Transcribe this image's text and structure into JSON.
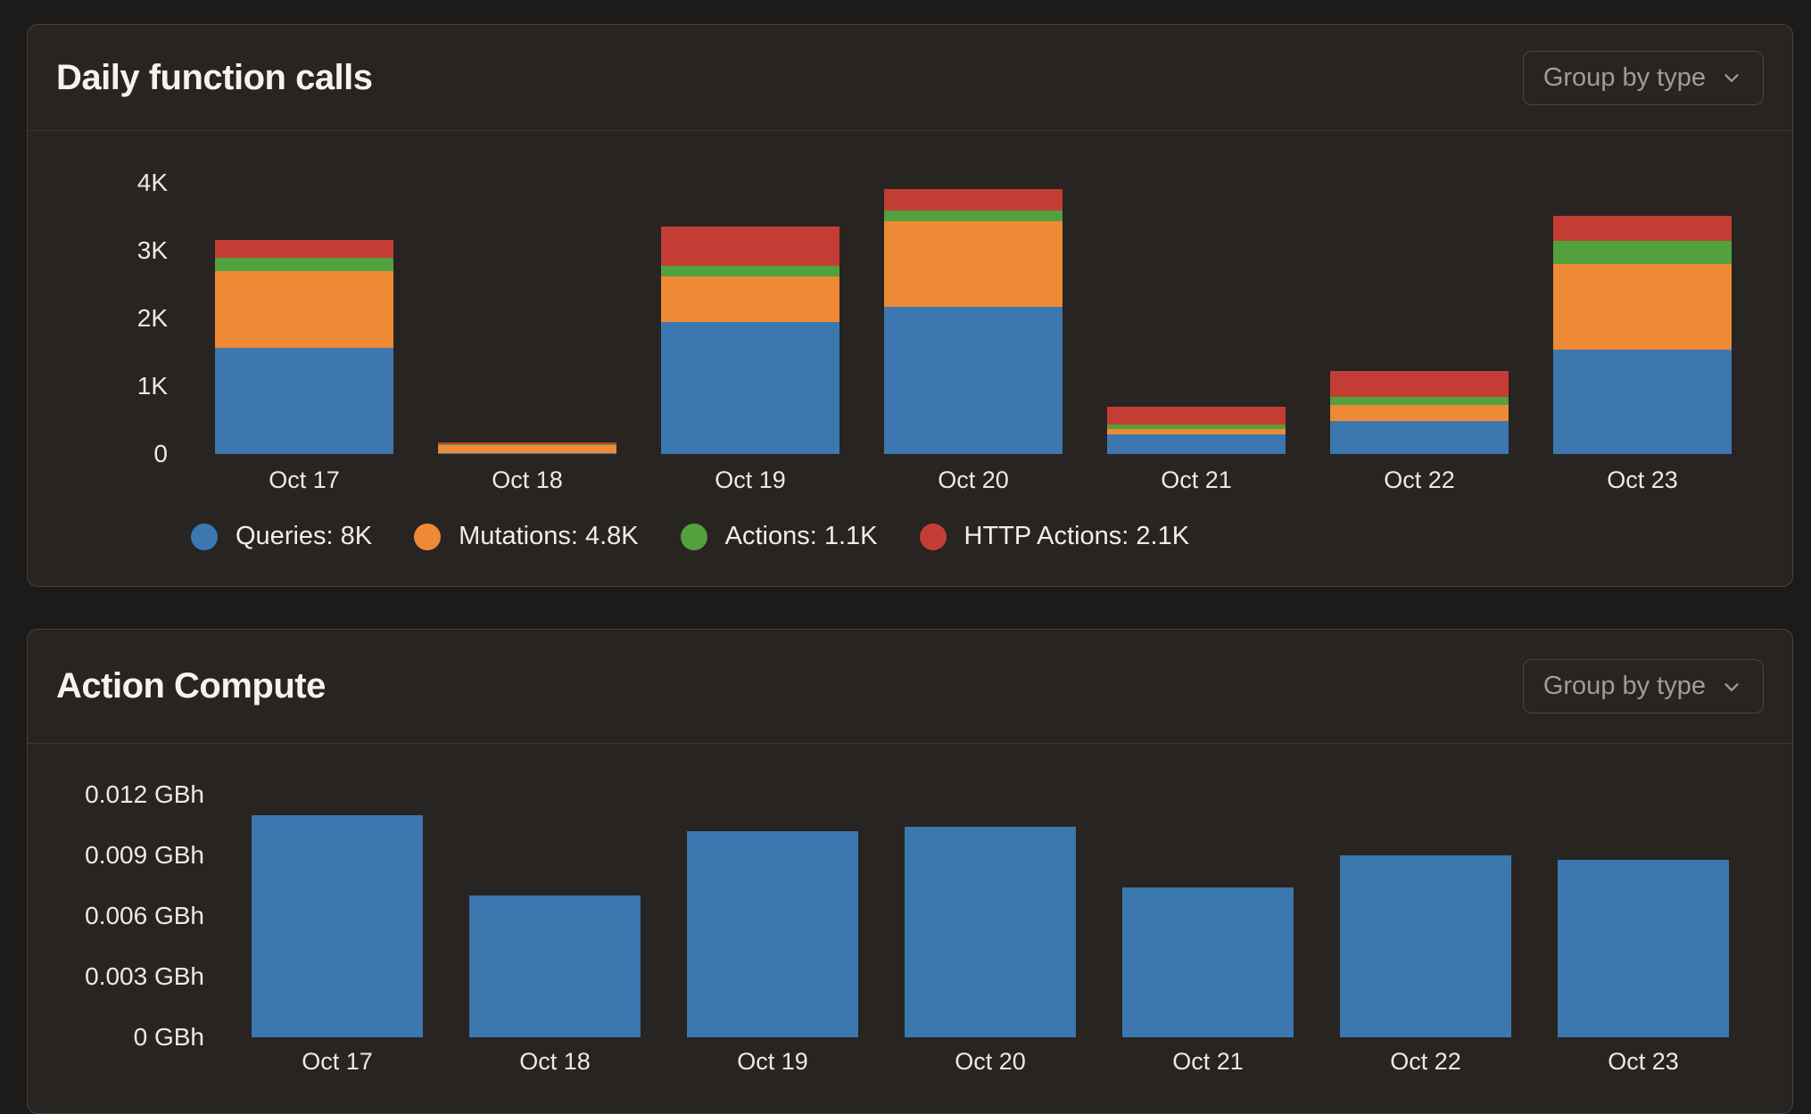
{
  "cards": [
    {
      "title": "Daily function calls",
      "group_button": {
        "label": "Group by type",
        "icon": "chevron-down-icon"
      }
    },
    {
      "title": "Action Compute",
      "group_button": {
        "label": "Group by type",
        "icon": "chevron-down-icon"
      }
    }
  ],
  "colors": {
    "queries_blue": "#3d77b0",
    "mutations_orange": "#ee8a35",
    "actions_green": "#52a03e",
    "http_actions_red": "#c43d35",
    "card_background": "#272421",
    "page_background": "#1d1b19",
    "card_border": "#45423e",
    "title_text": "#f4f3f1",
    "muted_text": "#a09d98",
    "axis_text": "#eceae7"
  },
  "chart_data": [
    {
      "type": "bar",
      "stacked": true,
      "title": "Daily function calls",
      "categories": [
        "Oct 17",
        "Oct 18",
        "Oct 19",
        "Oct 20",
        "Oct 21",
        "Oct 22",
        "Oct 23"
      ],
      "series": [
        {
          "name": "Queries",
          "legend_label": "Queries: 8K",
          "color": "#3d77b0",
          "values": [
            1570,
            15,
            1950,
            2170,
            285,
            490,
            1540
          ]
        },
        {
          "name": "Mutations",
          "legend_label": "Mutations: 4.8K",
          "color": "#ee8a35",
          "values": [
            1130,
            120,
            670,
            1270,
            90,
            230,
            1260
          ]
        },
        {
          "name": "Actions",
          "legend_label": "Actions: 1.1K",
          "color": "#52a03e",
          "values": [
            200,
            15,
            155,
            155,
            65,
            120,
            350
          ]
        },
        {
          "name": "HTTP Actions",
          "legend_label": "HTTP Actions: 2.1K",
          "color": "#c43d35",
          "values": [
            260,
            25,
            585,
            315,
            255,
            380,
            370
          ]
        }
      ],
      "y_axis": {
        "max": 4000,
        "ticks": [
          {
            "value": 0,
            "label": "0"
          },
          {
            "value": 1000,
            "label": "1K"
          },
          {
            "value": 2000,
            "label": "2K"
          },
          {
            "value": 3000,
            "label": "3K"
          },
          {
            "value": 4000,
            "label": "4K"
          }
        ]
      },
      "xlabel": "",
      "ylabel": "",
      "grid": false,
      "legend_position": "bottom"
    },
    {
      "type": "bar",
      "stacked": false,
      "title": "Action Compute",
      "categories": [
        "Oct 17",
        "Oct 18",
        "Oct 19",
        "Oct 20",
        "Oct 21",
        "Oct 22",
        "Oct 23"
      ],
      "series": [
        {
          "name": "Action Compute",
          "legend_label": "",
          "color": "#3d77b0",
          "values": [
            0.011,
            0.007,
            0.0102,
            0.0104,
            0.0074,
            0.009,
            0.0088
          ]
        }
      ],
      "y_axis": {
        "max": 0.012,
        "ticks": [
          {
            "value": 0,
            "label": "0 GBh"
          },
          {
            "value": 0.003,
            "label": "0.003 GBh"
          },
          {
            "value": 0.006,
            "label": "0.006 GBh"
          },
          {
            "value": 0.009,
            "label": "0.009 GBh"
          },
          {
            "value": 0.012,
            "label": "0.012 GBh"
          }
        ]
      },
      "xlabel": "",
      "ylabel": "",
      "grid": false,
      "legend_position": "none"
    }
  ]
}
